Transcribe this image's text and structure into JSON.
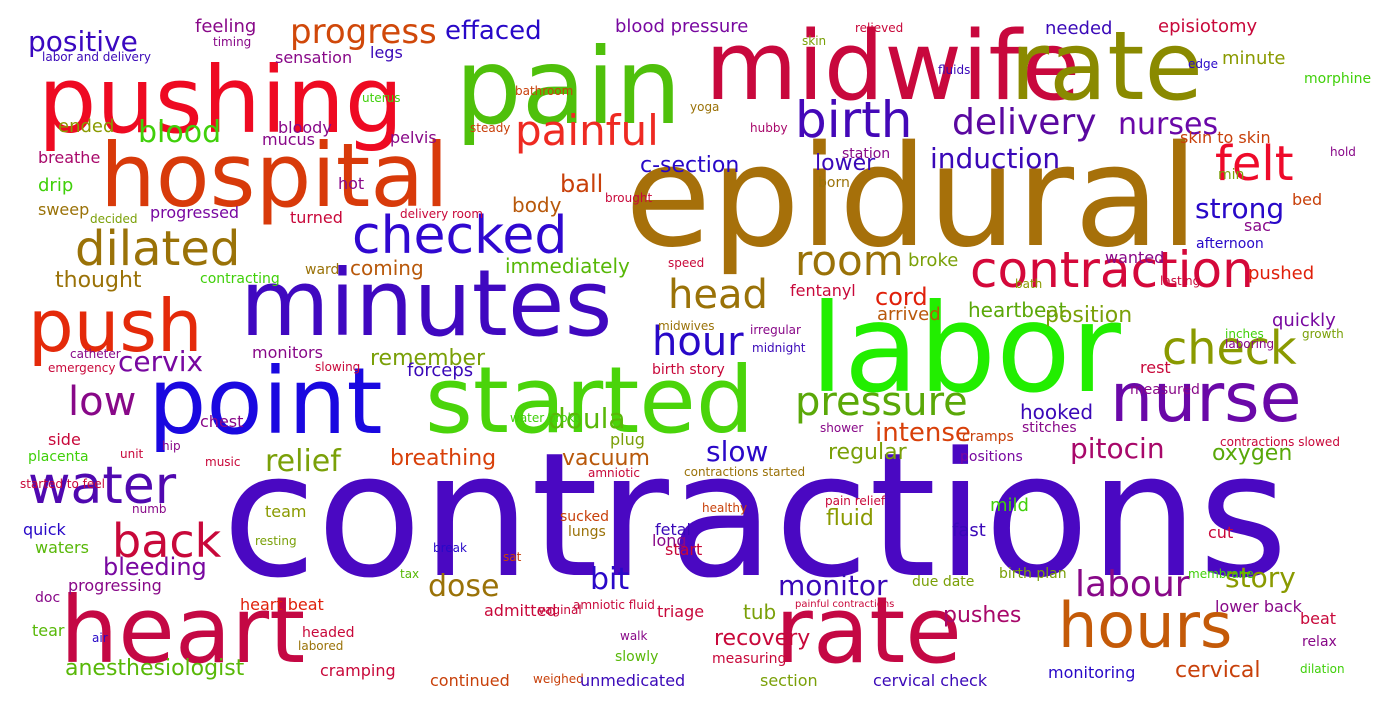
{
  "words": [
    {
      "text": "contractions",
      "color": "#4a08c2"
    },
    {
      "text": "epidural",
      "color": "#a6700a"
    },
    {
      "text": "labor",
      "color": "#22ee00"
    },
    {
      "text": "pain",
      "color": "#4fc00b"
    },
    {
      "text": "midwife",
      "color": "#c8083d"
    },
    {
      "text": "rate",
      "color": "#8a8a00"
    },
    {
      "text": "pushing",
      "color": "#ee0a22"
    },
    {
      "text": "hospital",
      "color": "#d83a0a"
    },
    {
      "text": "heart",
      "color": "#c40844"
    },
    {
      "text": "rate",
      "color": "#c40844"
    },
    {
      "text": "minutes",
      "color": "#4008c0"
    },
    {
      "text": "point",
      "color": "#1a08e0"
    },
    {
      "text": "started",
      "color": "#4ad40a"
    },
    {
      "text": "push",
      "color": "#e42a0a"
    },
    {
      "text": "nurse",
      "color": "#6a08a8"
    },
    {
      "text": "hours",
      "color": "#c45a08"
    },
    {
      "text": "checked",
      "color": "#3008d0"
    },
    {
      "text": "contraction",
      "color": "#d4083a"
    },
    {
      "text": "birth",
      "color": "#4408b8"
    },
    {
      "text": "painful",
      "color": "#ee2a22"
    },
    {
      "text": "felt",
      "color": "#ee0a2a"
    },
    {
      "text": "dilated",
      "color": "#9a7208"
    },
    {
      "text": "room",
      "color": "#9a7208"
    },
    {
      "text": "check",
      "color": "#8a9a00"
    },
    {
      "text": "pressure",
      "color": "#5aa808"
    },
    {
      "text": "water",
      "color": "#5008b0"
    },
    {
      "text": "back",
      "color": "#c8083a"
    },
    {
      "text": "head",
      "color": "#9a7208"
    },
    {
      "text": "hour",
      "color": "#2808c8"
    },
    {
      "text": "low",
      "color": "#880888"
    },
    {
      "text": "delivery",
      "color": "#5a08a0"
    },
    {
      "text": "nurses",
      "color": "#6a08a8"
    },
    {
      "text": "progress",
      "color": "#d0480a"
    },
    {
      "text": "positive",
      "color": "#3a08c0"
    },
    {
      "text": "effaced",
      "color": "#2808c8"
    },
    {
      "text": "blood",
      "color": "#40d00a"
    },
    {
      "text": "induction",
      "color": "#3a08b8"
    },
    {
      "text": "strong",
      "color": "#2808c8"
    },
    {
      "text": "labour",
      "color": "#880888"
    },
    {
      "text": "pitocin",
      "color": "#a8086a"
    },
    {
      "text": "intense",
      "color": "#d8400a"
    },
    {
      "text": "relief",
      "color": "#7aa008"
    },
    {
      "text": "cervix",
      "color": "#7808a0"
    },
    {
      "text": "doula",
      "color": "#58b808"
    },
    {
      "text": "slow",
      "color": "#2a08c8"
    },
    {
      "text": "bit",
      "color": "#2a08c8"
    },
    {
      "text": "monitor",
      "color": "#3a08b8"
    },
    {
      "text": "dose",
      "color": "#9a7208"
    },
    {
      "text": "story",
      "color": "#8a9a00"
    },
    {
      "text": "ball",
      "color": "#c8400a"
    },
    {
      "text": "cord",
      "color": "#e0200a"
    },
    {
      "text": "bleeding",
      "color": "#7808a0"
    },
    {
      "text": "vacuum",
      "color": "#b8580a"
    },
    {
      "text": "breathing",
      "color": "#d8400a"
    },
    {
      "text": "regular",
      "color": "#7aa008"
    },
    {
      "text": "fluid",
      "color": "#8a9a00"
    },
    {
      "text": "oxygen",
      "color": "#58a808"
    },
    {
      "text": "cervical",
      "color": "#c8400a"
    },
    {
      "text": "anesthesiologist",
      "color": "#58b808"
    },
    {
      "text": "c-section",
      "color": "#2808c8"
    },
    {
      "text": "immediately",
      "color": "#58b808"
    },
    {
      "text": "heartbeat",
      "color": "#5aa808"
    },
    {
      "text": "position",
      "color": "#7aa008"
    },
    {
      "text": "remember",
      "color": "#7aa008"
    },
    {
      "text": "recovery",
      "color": "#c8083a"
    },
    {
      "text": "pushes",
      "color": "#a8086a"
    },
    {
      "text": "tub",
      "color": "#7aa008"
    },
    {
      "text": "thought",
      "color": "#9a7208"
    },
    {
      "text": "coming",
      "color": "#b8580a"
    },
    {
      "text": "body",
      "color": "#b8580a"
    },
    {
      "text": "lower",
      "color": "#3a08b8"
    },
    {
      "text": "hooked",
      "color": "#3a08b8"
    },
    {
      "text": "quickly",
      "color": "#7808a0"
    },
    {
      "text": "legs",
      "color": "#3a08b8"
    },
    {
      "text": "needed",
      "color": "#3a08b8"
    },
    {
      "text": "episiotomy",
      "color": "#c8083a"
    },
    {
      "text": "minute",
      "color": "#8a9a00"
    },
    {
      "text": "blood pressure",
      "color": "#7808a0"
    },
    {
      "text": "feeling",
      "color": "#880888"
    },
    {
      "text": "sensation",
      "color": "#880888"
    },
    {
      "text": "ended",
      "color": "#8a9a00"
    },
    {
      "text": "mucus",
      "color": "#880888"
    },
    {
      "text": "pelvis",
      "color": "#880888"
    },
    {
      "text": "bloody",
      "color": "#880888"
    },
    {
      "text": "monitors",
      "color": "#880888"
    },
    {
      "text": "forceps",
      "color": "#3a08b8"
    },
    {
      "text": "arrived",
      "color": "#b8580a"
    },
    {
      "text": "broke",
      "color": "#7aa008"
    },
    {
      "text": "fentanyl",
      "color": "#c8083a"
    },
    {
      "text": "pushed",
      "color": "#e0200a"
    },
    {
      "text": "sac",
      "color": "#880888"
    },
    {
      "text": "afternoon",
      "color": "#2808c8"
    },
    {
      "text": "wanted",
      "color": "#880888"
    },
    {
      "text": "rest",
      "color": "#c8083a"
    },
    {
      "text": "bed",
      "color": "#c8400a"
    },
    {
      "text": "drip",
      "color": "#40d00a"
    },
    {
      "text": "sweep",
      "color": "#9a7208"
    },
    {
      "text": "breathe",
      "color": "#a8086a"
    },
    {
      "text": "progressed",
      "color": "#7808a0"
    },
    {
      "text": "turned",
      "color": "#c8083a"
    },
    {
      "text": "hot",
      "color": "#880888"
    },
    {
      "text": "ward",
      "color": "#9a7208"
    },
    {
      "text": "born",
      "color": "#9a7208"
    },
    {
      "text": "station",
      "color": "#880888"
    },
    {
      "text": "skin to skin",
      "color": "#c8400a"
    },
    {
      "text": "min",
      "color": "#7aa008"
    },
    {
      "text": "hold",
      "color": "#880888"
    },
    {
      "text": "morphine",
      "color": "#40d00a"
    },
    {
      "text": "labor and delivery",
      "color": "#3a08b8"
    },
    {
      "text": "timing",
      "color": "#880888"
    },
    {
      "text": "uterus",
      "color": "#40d00a"
    },
    {
      "text": "bathroom",
      "color": "#c8400a"
    },
    {
      "text": "steady",
      "color": "#c8400a"
    },
    {
      "text": "yoga",
      "color": "#9a7208"
    },
    {
      "text": "hubby",
      "color": "#a8086a"
    },
    {
      "text": "skin",
      "color": "#7aa008"
    },
    {
      "text": "relieved",
      "color": "#c8083a"
    },
    {
      "text": "fluids",
      "color": "#3a08b8"
    },
    {
      "text": "edge",
      "color": "#2808c8"
    },
    {
      "text": "decided",
      "color": "#7aa008"
    },
    {
      "text": "delivery room",
      "color": "#c8083a"
    },
    {
      "text": "brought",
      "color": "#c8083a"
    },
    {
      "text": "contracting",
      "color": "#40d00a"
    },
    {
      "text": "speed",
      "color": "#c8083a"
    },
    {
      "text": "bath",
      "color": "#8a9a00"
    },
    {
      "text": "lasting",
      "color": "#c8083a"
    },
    {
      "text": "midwives",
      "color": "#9a7208"
    },
    {
      "text": "irregular",
      "color": "#880888"
    },
    {
      "text": "midnight",
      "color": "#3a08b8"
    },
    {
      "text": "inches",
      "color": "#40d00a"
    },
    {
      "text": "laboring",
      "color": "#880888"
    },
    {
      "text": "growth",
      "color": "#7aa008"
    },
    {
      "text": "catheter",
      "color": "#880888"
    },
    {
      "text": "emergency",
      "color": "#c8083a"
    },
    {
      "text": "slowing",
      "color": "#c8083a"
    },
    {
      "text": "birth story",
      "color": "#c8083a"
    },
    {
      "text": "measured",
      "color": "#880888"
    },
    {
      "text": "side",
      "color": "#c8083a"
    },
    {
      "text": "placenta",
      "color": "#40d00a"
    },
    {
      "text": "unit",
      "color": "#c8083a"
    },
    {
      "text": "hip",
      "color": "#880888"
    },
    {
      "text": "music",
      "color": "#c8083a"
    },
    {
      "text": "chest",
      "color": "#880888"
    },
    {
      "text": "plug",
      "color": "#7aa008"
    },
    {
      "text": "water broke",
      "color": "#40d00a"
    },
    {
      "text": "amniotic",
      "color": "#c8083a"
    },
    {
      "text": "contractions started",
      "color": "#9a7208"
    },
    {
      "text": "shower",
      "color": "#880888"
    },
    {
      "text": "cramps",
      "color": "#c8400a"
    },
    {
      "text": "positions",
      "color": "#7808a0"
    },
    {
      "text": "stitches",
      "color": "#880888"
    },
    {
      "text": "contractions slowed",
      "color": "#c8083a"
    },
    {
      "text": "started to feel",
      "color": "#c8083a"
    },
    {
      "text": "numb",
      "color": "#880888"
    },
    {
      "text": "team",
      "color": "#8a9a00"
    },
    {
      "text": "sucked",
      "color": "#c8400a"
    },
    {
      "text": "healthy",
      "color": "#c8400a"
    },
    {
      "text": "pain relief",
      "color": "#c8083a"
    },
    {
      "text": "mild",
      "color": "#40d00a"
    },
    {
      "text": "quick",
      "color": "#2808c8"
    },
    {
      "text": "waters",
      "color": "#58b808"
    },
    {
      "text": "resting",
      "color": "#7aa008"
    },
    {
      "text": "lungs",
      "color": "#9a7208"
    },
    {
      "text": "fetal",
      "color": "#3a08b8"
    },
    {
      "text": "long",
      "color": "#880888"
    },
    {
      "text": "fast",
      "color": "#3a08b8"
    },
    {
      "text": "cut",
      "color": "#c8083a"
    },
    {
      "text": "break",
      "color": "#2808c8"
    },
    {
      "text": "sat",
      "color": "#c8400a"
    },
    {
      "text": "start",
      "color": "#c8083a"
    },
    {
      "text": "progressing",
      "color": "#880888"
    },
    {
      "text": "heart beat",
      "color": "#e0200a"
    },
    {
      "text": "tax",
      "color": "#58b808"
    },
    {
      "text": "triage",
      "color": "#c8083a"
    },
    {
      "text": "due date",
      "color": "#7aa008"
    },
    {
      "text": "birth plan",
      "color": "#7aa008"
    },
    {
      "text": "membrane",
      "color": "#40d00a"
    },
    {
      "text": "doc",
      "color": "#880888"
    },
    {
      "text": "admitted",
      "color": "#c8083a"
    },
    {
      "text": "vaginal",
      "color": "#c8083a"
    },
    {
      "text": "amniotic fluid",
      "color": "#c8083a"
    },
    {
      "text": "painful contractions",
      "color": "#c8083a"
    },
    {
      "text": "lower back",
      "color": "#880888"
    },
    {
      "text": "beat",
      "color": "#c8083a"
    },
    {
      "text": "tear",
      "color": "#58b808"
    },
    {
      "text": "air",
      "color": "#2808c8"
    },
    {
      "text": "headed",
      "color": "#c8083a"
    },
    {
      "text": "labored",
      "color": "#9a7208"
    },
    {
      "text": "walk",
      "color": "#880888"
    },
    {
      "text": "slowly",
      "color": "#58b808"
    },
    {
      "text": "measuring",
      "color": "#c8083a"
    },
    {
      "text": "relax",
      "color": "#880888"
    },
    {
      "text": "cramping",
      "color": "#c8083a"
    },
    {
      "text": "continued",
      "color": "#c8400a"
    },
    {
      "text": "weighed",
      "color": "#c8400a"
    },
    {
      "text": "unmedicated",
      "color": "#3a08b8"
    },
    {
      "text": "section",
      "color": "#7aa008"
    },
    {
      "text": "cervical check",
      "color": "#3a08b8"
    },
    {
      "text": "monitoring",
      "color": "#2808c8"
    },
    {
      "text": "dilation",
      "color": "#40d00a"
    }
  ]
}
